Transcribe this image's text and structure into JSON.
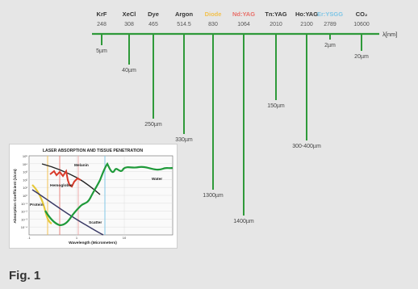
{
  "axis_unit": "λ[nm]",
  "lasers": [
    {
      "name": "KrF",
      "wavelength": "248",
      "depth": "5µm",
      "color": "#333333",
      "depth_value_um": 5
    },
    {
      "name": "XeCl",
      "wavelength": "308",
      "depth": "40µm",
      "color": "#333333",
      "depth_value_um": 40
    },
    {
      "name": "Dye",
      "wavelength": "465",
      "depth": "250µm",
      "color": "#333333",
      "depth_value_um": 250
    },
    {
      "name": "Argon",
      "wavelength": "514.5",
      "depth": "330µm",
      "color": "#333333",
      "depth_value_um": 330
    },
    {
      "name": "Diode",
      "wavelength": "830",
      "depth": "1300µm",
      "color": "#f2c14e",
      "depth_value_um": 1300
    },
    {
      "name": "Nd:YAG",
      "wavelength": "1064",
      "depth": "1400µm",
      "color": "#e8706a",
      "depth_value_um": 1400
    },
    {
      "name": "Tn:YAG",
      "wavelength": "2010",
      "depth": "150µm",
      "color": "#333333",
      "depth_value_um": 150
    },
    {
      "name": "Ho:YAG",
      "wavelength": "2100",
      "depth": "300-400µm",
      "color": "#333333",
      "depth_value_um": 350
    },
    {
      "name": "Er:YSGG",
      "wavelength": "2789",
      "depth": "2µm",
      "color": "#7fc6e6",
      "depth_value_um": 2
    },
    {
      "name": "CO₂",
      "wavelength": "10600",
      "depth": "20µm",
      "color": "#333333",
      "depth_value_um": 20
    }
  ],
  "line_color": "#2f9a3a",
  "inset": {
    "title": "LASER ABSORPTION AND TISSUE PENETRATION",
    "ylabel": "Absorption Coefficient (1/cm)",
    "xlabel": "Wavelength (Micrometers)",
    "y_ticks": [
      "10⁵",
      "10⁴",
      "10³",
      "10²",
      "10¹",
      "10⁰",
      "10⁻¹",
      "10⁻²",
      "10⁻³",
      "10⁻⁴"
    ],
    "x_ticks": [
      ".1",
      "1",
      "10"
    ],
    "curve_labels": {
      "melanin": "Melanin",
      "hemoglobin": "Hemoglobin",
      "water": "Water",
      "protein": "Protein",
      "scatter": "Scatter"
    }
  },
  "figure_label": "Fig. 1"
}
